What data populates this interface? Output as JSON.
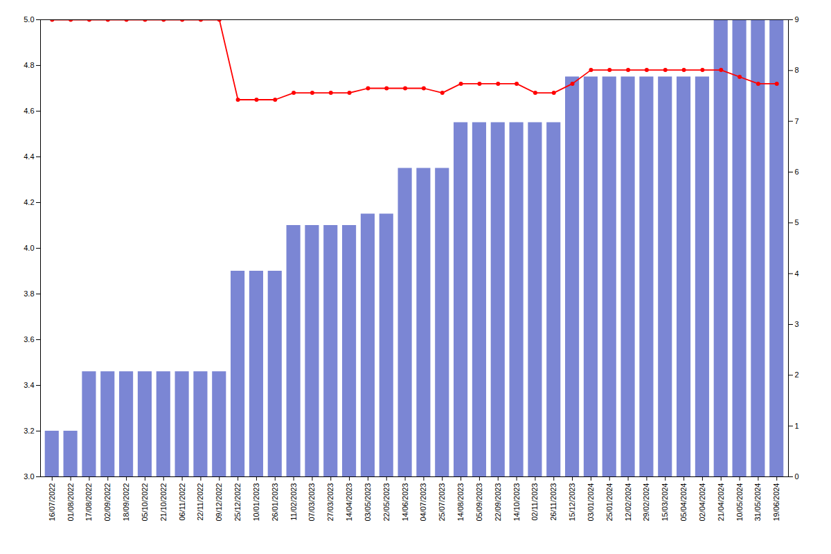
{
  "chart_data": {
    "type": "bar",
    "categories": [
      "16/07/2022",
      "01/08/2022",
      "17/08/2022",
      "02/09/2022",
      "18/09/2022",
      "05/10/2022",
      "21/10/2022",
      "06/11/2022",
      "22/11/2022",
      "09/12/2022",
      "25/12/2022",
      "10/01/2023",
      "26/01/2023",
      "11/02/2023",
      "07/03/2023",
      "27/03/2023",
      "14/04/2023",
      "03/05/2023",
      "22/05/2023",
      "14/06/2023",
      "04/07/2023",
      "25/07/2023",
      "14/08/2023",
      "05/09/2023",
      "22/09/2023",
      "14/10/2023",
      "02/11/2023",
      "26/11/2023",
      "15/12/2023",
      "03/01/2024",
      "25/01/2024",
      "12/02/2024",
      "29/02/2024",
      "15/03/2024",
      "05/04/2024",
      "02/04/2024",
      "21/04/2024",
      "10/05/2024",
      "31/05/2024",
      "19/06/2024"
    ],
    "bottom": 3.0,
    "series": [
      {
        "type": "bar",
        "color": "#7B86D4",
        "values": [
          3.2,
          3.2,
          3.46,
          3.46,
          3.46,
          3.46,
          3.46,
          3.46,
          3.46,
          3.46,
          3.9,
          3.9,
          3.9,
          4.1,
          4.1,
          4.1,
          4.1,
          4.15,
          4.15,
          4.35,
          4.35,
          4.35,
          4.55,
          4.55,
          4.55,
          4.55,
          4.55,
          4.55,
          4.75,
          4.75,
          4.75,
          4.75,
          4.75,
          4.75,
          4.75,
          4.75,
          5.0,
          5.0,
          5.0,
          5.0
        ]
      },
      {
        "type": "line",
        "color": "#FF0000",
        "marker": "circle",
        "values": [
          5.0,
          5.0,
          5.0,
          5.0,
          5.0,
          5.0,
          5.0,
          5.0,
          5.0,
          5.0,
          4.65,
          4.65,
          4.65,
          4.68,
          4.68,
          4.68,
          4.68,
          4.7,
          4.7,
          4.7,
          4.7,
          4.68,
          4.72,
          4.72,
          4.72,
          4.72,
          4.68,
          4.68,
          4.72,
          4.78,
          4.78,
          4.78,
          4.78,
          4.78,
          4.78,
          4.78,
          4.78,
          4.75,
          4.72,
          4.72
        ]
      }
    ],
    "ylim": [
      3.0,
      5.0
    ],
    "yticks": [
      {
        "value": 3.0,
        "label": "3.0"
      },
      3.2,
      3.4,
      3.6,
      3.8,
      {
        "value": 4.0,
        "label": "4.0"
      },
      4.2,
      4.4,
      4.6,
      4.8,
      {
        "value": 5.0,
        "label": "5.0"
      }
    ],
    "y2lim": [
      0,
      9
    ],
    "y2ticks": [
      0,
      1,
      2,
      3,
      4,
      5,
      6,
      7,
      8,
      9
    ],
    "grid": false
  }
}
